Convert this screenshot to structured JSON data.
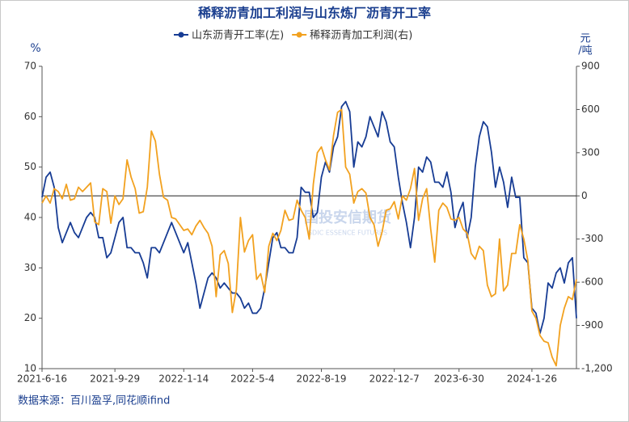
{
  "chart_data": {
    "type": "line",
    "title": "稀释沥青加工利润与山东炼厂沥青开工率",
    "y_label": "%",
    "y2_label": [
      "元",
      "/吨"
    ],
    "source": "数据来源：百川盈孚,同花顺ifind",
    "watermark": [
      "国投安信期货",
      "SDIC ESSENCE FUTURES"
    ],
    "categories": [
      "2021-6-16",
      null,
      null,
      null,
      null,
      null,
      null,
      null,
      null,
      null,
      null,
      null,
      null,
      null,
      null,
      null,
      null,
      null,
      "2021-9-29",
      null,
      null,
      null,
      null,
      null,
      null,
      null,
      null,
      null,
      null,
      null,
      null,
      null,
      null,
      null,
      null,
      "2022-1-14",
      null,
      null,
      null,
      null,
      null,
      null,
      null,
      null,
      null,
      null,
      null,
      null,
      null,
      null,
      null,
      null,
      "2022-5-4",
      null,
      null,
      null,
      null,
      null,
      null,
      null,
      null,
      null,
      null,
      null,
      null,
      null,
      null,
      null,
      null,
      "2022-8-19",
      null,
      null,
      null,
      null,
      null,
      null,
      null,
      null,
      null,
      null,
      null,
      null,
      null,
      null,
      null,
      null,
      null,
      "2022-12-7",
      null,
      null,
      null,
      null,
      null,
      null,
      null,
      null,
      null,
      null,
      null,
      null,
      null,
      null,
      null,
      "2023-6-30",
      null,
      null,
      null,
      null,
      null,
      null,
      null,
      null,
      null,
      null,
      null,
      null,
      null,
      null,
      null,
      null,
      null,
      "2024-1-26",
      null,
      null,
      null,
      null,
      null,
      null,
      null,
      null,
      null,
      null,
      null
    ],
    "series": [
      {
        "name": "山东沥青开工率(左)",
        "color": "#173c94",
        "axis": "y",
        "values": [
          44,
          48,
          49,
          46,
          38,
          35,
          37,
          39,
          37,
          36,
          38,
          40,
          41,
          40,
          36,
          36,
          32,
          33,
          36,
          39,
          40,
          34,
          34,
          33,
          33,
          31,
          28,
          34,
          34,
          33,
          35,
          37,
          39,
          37,
          35,
          33,
          35,
          31,
          27,
          22,
          25,
          28,
          29,
          28,
          26,
          27,
          26,
          25,
          25,
          24,
          22,
          23,
          21,
          21,
          22,
          26,
          31,
          36,
          37,
          34,
          34,
          33,
          33,
          36,
          46,
          45,
          45,
          40,
          41,
          48,
          51,
          49,
          54,
          56,
          62,
          63,
          61,
          50,
          55,
          54,
          56,
          60,
          58,
          56,
          61,
          59,
          55,
          54,
          48,
          43,
          39,
          34,
          40,
          50,
          49,
          52,
          51,
          47,
          47,
          46,
          49,
          45,
          38,
          41,
          43,
          36,
          40,
          50,
          56,
          59,
          58,
          53,
          46,
          50,
          47,
          42,
          48,
          44,
          44,
          32,
          31,
          22,
          21,
          17,
          20,
          27,
          26,
          29,
          30,
          27,
          31,
          32,
          20
        ]
      },
      {
        "name": "稀释沥青加工利润(右)",
        "color": "#f2a11f",
        "axis": "y2",
        "values": [
          -50,
          0,
          -50,
          50,
          30,
          -20,
          80,
          -30,
          -20,
          60,
          30,
          60,
          90,
          -180,
          -200,
          50,
          30,
          -190,
          0,
          -60,
          -20,
          250,
          130,
          50,
          -120,
          -110,
          60,
          450,
          380,
          150,
          -10,
          -30,
          -150,
          -160,
          -200,
          -240,
          -230,
          -270,
          -210,
          -170,
          -220,
          -260,
          -350,
          -700,
          -410,
          -380,
          -470,
          -810,
          -650,
          -150,
          -390,
          -310,
          -270,
          -580,
          -540,
          -670,
          -350,
          -260,
          -310,
          -240,
          -100,
          -170,
          -160,
          -30,
          -100,
          -150,
          -300,
          80,
          300,
          340,
          250,
          180,
          420,
          580,
          600,
          200,
          150,
          -50,
          30,
          50,
          20,
          -150,
          -200,
          -350,
          -250,
          -100,
          -90,
          -40,
          -160,
          0,
          -30,
          50,
          190,
          -170,
          -20,
          50,
          -230,
          -460,
          -100,
          -50,
          -80,
          -160,
          -170,
          -150,
          -230,
          -260,
          -400,
          -440,
          -350,
          -380,
          -620,
          -700,
          -680,
          -300,
          -660,
          -620,
          -400,
          -400,
          -200,
          -300,
          -450,
          -800,
          -850,
          -970,
          -1010,
          -1020,
          -1120,
          -1180,
          -900,
          -780,
          -700,
          -720,
          -580
        ]
      }
    ],
    "ylim": [
      10,
      70
    ],
    "yticks": [
      10,
      20,
      30,
      40,
      50,
      60,
      70
    ],
    "y2lim": [
      -1200,
      900
    ],
    "y2ticks": [
      900,
      600,
      300,
      0,
      -300,
      -600,
      -900,
      {
        "value": -1200,
        "label": "-1,200"
      }
    ],
    "legend": "top"
  }
}
